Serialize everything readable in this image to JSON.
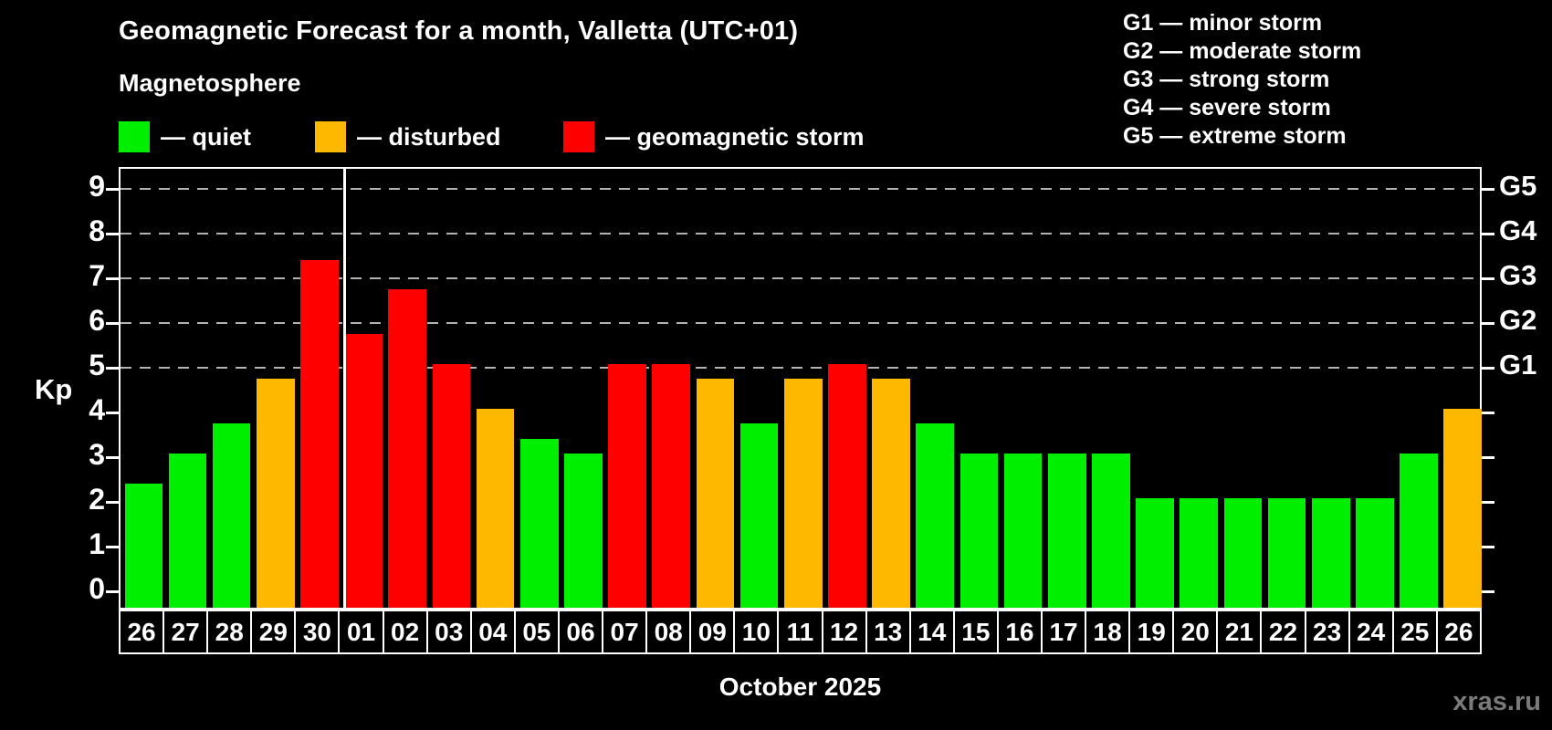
{
  "title": "Geomagnetic Forecast for a month, Valletta (UTC+01)",
  "subtitle": "Magnetosphere",
  "watermark": "xras.ru",
  "colors": {
    "quiet": "#00ee00",
    "disturbed": "#ffb800",
    "storm": "#ff0000",
    "background": "#000000",
    "axis": "#ffffff",
    "gridline": "#b3b3b3",
    "watermark_gray": "#7a7a7a"
  },
  "kp_legend": [
    {
      "key": "quiet",
      "label": "— quiet"
    },
    {
      "key": "disturbed",
      "label": "— disturbed"
    },
    {
      "key": "storm",
      "label": "— geomagnetic storm"
    }
  ],
  "g_legend": [
    "G1 — minor storm",
    "G2 — moderate storm",
    "G3 — strong storm",
    "G4 — severe storm",
    "G5 — extreme storm"
  ],
  "chart_data": {
    "type": "bar",
    "title": "Geomagnetic Forecast for a month, Valletta (UTC+01)",
    "xlabel": "October 2025",
    "ylabel": "Kp",
    "ylim": [
      -0.45,
      9.45
    ],
    "y_ticks": [
      0,
      1,
      2,
      3,
      4,
      5,
      6,
      7,
      8,
      9
    ],
    "gridlines_at_kp": [
      5,
      6,
      7,
      8,
      9
    ],
    "grid": "dashed horizontal at storm thresholds only",
    "legend_position": "top-left",
    "right_axis_labels": [
      {
        "label": "G1",
        "kp": 5
      },
      {
        "label": "G2",
        "kp": 6
      },
      {
        "label": "G3",
        "kp": 7
      },
      {
        "label": "G4",
        "kp": 8
      },
      {
        "label": "G5",
        "kp": 9
      }
    ],
    "month_boundary_index": 5,
    "categories": [
      "26",
      "27",
      "28",
      "29",
      "30",
      "01",
      "02",
      "03",
      "04",
      "05",
      "06",
      "07",
      "08",
      "09",
      "10",
      "11",
      "12",
      "13",
      "14",
      "15",
      "16",
      "17",
      "18",
      "19",
      "20",
      "21",
      "22",
      "23",
      "24",
      "25",
      "26"
    ],
    "values": [
      2.33,
      3,
      3.67,
      4.67,
      7.33,
      5.67,
      6.67,
      5,
      4,
      3.33,
      3,
      5,
      5,
      4.67,
      3.67,
      4.67,
      5,
      4.67,
      3.67,
      3,
      3,
      3,
      3,
      2,
      2,
      2,
      2,
      2,
      2,
      3,
      4
    ],
    "levels": [
      "quiet",
      "quiet",
      "quiet",
      "disturbed",
      "storm",
      "storm",
      "storm",
      "storm",
      "disturbed",
      "quiet",
      "quiet",
      "storm",
      "storm",
      "disturbed",
      "quiet",
      "disturbed",
      "storm",
      "disturbed",
      "quiet",
      "quiet",
      "quiet",
      "quiet",
      "quiet",
      "quiet",
      "quiet",
      "quiet",
      "quiet",
      "quiet",
      "quiet",
      "quiet",
      "disturbed"
    ]
  }
}
